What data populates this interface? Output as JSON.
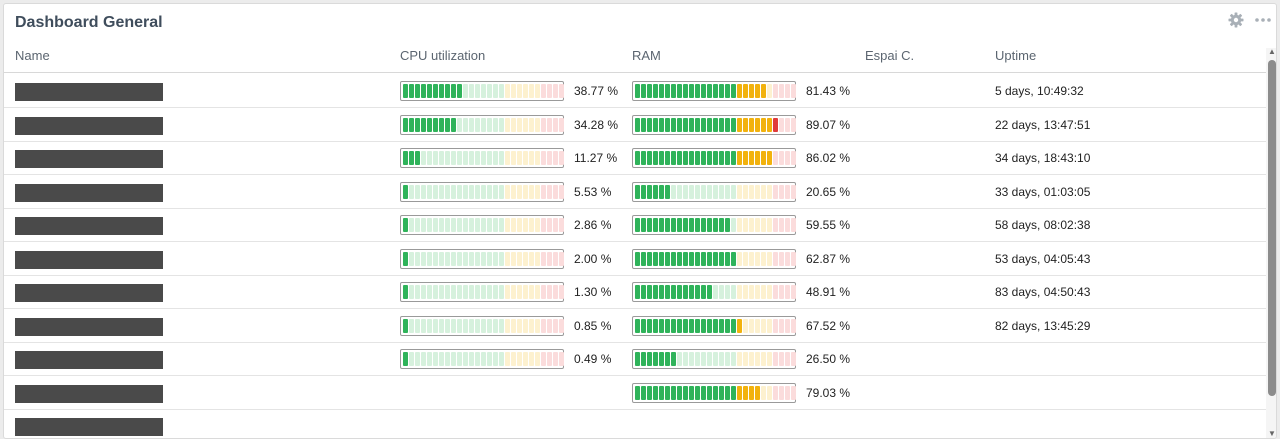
{
  "widget": {
    "title": "Dashboard General",
    "icons": {
      "settings": "gear-icon",
      "menu": "more-horizontal-icon"
    }
  },
  "columns": {
    "name": "Name",
    "cpu": "CPU utilization",
    "ram": "RAM",
    "disk": "Espai C.",
    "uptime": "Uptime"
  },
  "meter_colors": {
    "green_on": "#2fb35a",
    "green_off": "#d6f1dd",
    "yellow_on": "#f2b20d",
    "yellow_off": "#fdf1cf",
    "red_on": "#e03b3b",
    "red_off": "#fbdcdc"
  },
  "rows": [
    {
      "cpu": 38.77,
      "cpu_label": "38.77 %",
      "ram": 81.43,
      "ram_label": "81.43 %",
      "uptime": "5 days, 10:49:32"
    },
    {
      "cpu": 34.28,
      "cpu_label": "34.28 %",
      "ram": 89.07,
      "ram_label": "89.07 %",
      "uptime": "22 days, 13:47:51"
    },
    {
      "cpu": 11.27,
      "cpu_label": "11.27 %",
      "ram": 86.02,
      "ram_label": "86.02 %",
      "uptime": "34 days, 18:43:10"
    },
    {
      "cpu": 5.53,
      "cpu_label": "5.53 %",
      "ram": 20.65,
      "ram_label": "20.65 %",
      "uptime": "33 days, 01:03:05"
    },
    {
      "cpu": 2.86,
      "cpu_label": "2.86 %",
      "ram": 59.55,
      "ram_label": "59.55 %",
      "uptime": "58 days, 08:02:38"
    },
    {
      "cpu": 2.0,
      "cpu_label": "2.00 %",
      "ram": 62.87,
      "ram_label": "62.87 %",
      "uptime": "53 days, 04:05:43"
    },
    {
      "cpu": 1.3,
      "cpu_label": "1.30 %",
      "ram": 48.91,
      "ram_label": "48.91 %",
      "uptime": "83 days, 04:50:43"
    },
    {
      "cpu": 0.85,
      "cpu_label": "0.85 %",
      "ram": 67.52,
      "ram_label": "67.52 %",
      "uptime": "82 days, 13:45:29"
    },
    {
      "cpu": 0.49,
      "cpu_label": "0.49 %",
      "ram": 26.5,
      "ram_label": "26.50 %",
      "uptime": ""
    },
    {
      "cpu": null,
      "cpu_label": "",
      "ram": 79.03,
      "ram_label": "79.03 %",
      "uptime": ""
    },
    {
      "cpu": null,
      "cpu_label": "",
      "ram": null,
      "ram_label": "",
      "uptime": ""
    }
  ]
}
